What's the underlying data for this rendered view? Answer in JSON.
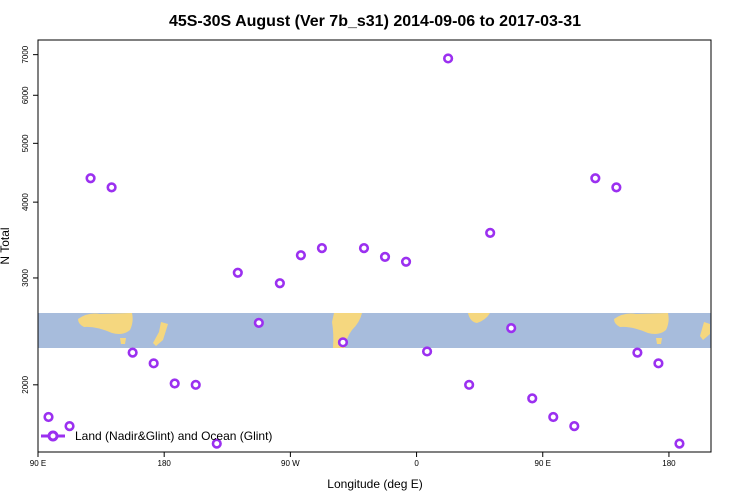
{
  "chart_data": {
    "type": "scatter",
    "title": "45S-30S August (Ver 7b_s31)   2014-09-06 to 2017-03-31",
    "xlabel": "Longitude (deg E)",
    "ylabel": "N Total",
    "yscale": "log",
    "xlim": [
      0,
      16
    ],
    "ylim": [
      1550,
      7400
    ],
    "x_ticks": [
      {
        "pos": 0,
        "label": "90 E"
      },
      {
        "pos": 3,
        "label": "180"
      },
      {
        "pos": 6,
        "label": "90 W"
      },
      {
        "pos": 9,
        "label": "0"
      },
      {
        "pos": 12,
        "label": "90 E"
      },
      {
        "pos": 15,
        "label": "180"
      }
    ],
    "y_ticks": [
      2000,
      3000,
      4000,
      5000,
      6000,
      7000
    ],
    "y_tick_labels": [
      "2000",
      "3000",
      "4000",
      "5000",
      "6000",
      "7000"
    ],
    "series": [
      {
        "name": "Land (Nadir&Glint) and Ocean (Glint)",
        "color": "#9b30f0",
        "x": [
          0.25,
          0.75,
          1.25,
          1.75,
          2.25,
          2.75,
          3.25,
          3.75,
          4.25,
          4.75,
          5.25,
          5.75,
          6.25,
          6.75,
          7.25,
          7.75,
          8.25,
          8.75,
          9.25,
          9.75,
          10.25,
          10.75,
          11.25,
          11.75,
          12.25,
          12.75,
          13.25,
          13.75,
          14.25,
          14.75,
          15.25
        ],
        "y": [
          1770,
          1710,
          4380,
          4230,
          2260,
          2170,
          2010,
          2000,
          1600,
          3060,
          2530,
          2940,
          3270,
          3360,
          2350,
          3360,
          3250,
          3190,
          2270,
          6900,
          2000,
          3560,
          2480,
          1900,
          1770,
          1710,
          4380,
          4230,
          2260,
          2170,
          1600
        ]
      }
    ],
    "legend": {
      "location": "bottom-left",
      "label": "Land (Nadir&Glint) and Ocean (Glint)"
    },
    "map_strip": {
      "ocean_color": "#a7bcdc",
      "land_color": "#f5d77f"
    }
  }
}
